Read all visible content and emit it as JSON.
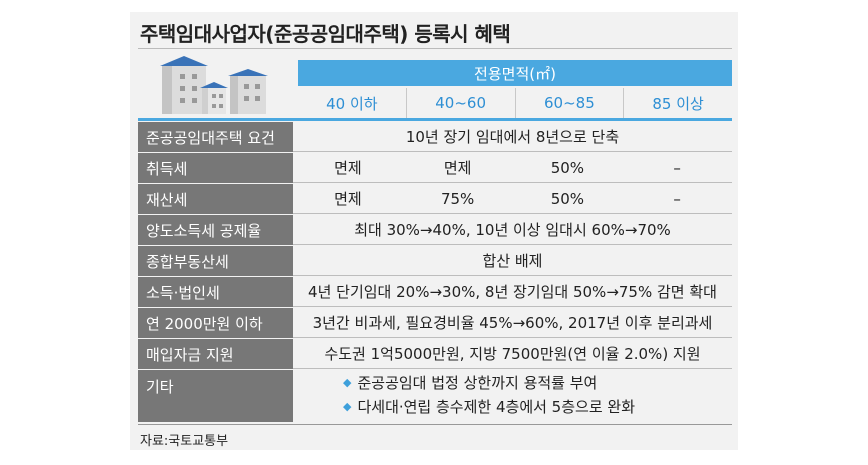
{
  "title": "주택임대사업자(준공공임대주택) 등록시 혜택",
  "header": {
    "area_label": "전용면적(㎡)",
    "columns": [
      "40 이하",
      "40~60",
      "60~85",
      "85 이상"
    ]
  },
  "rows": [
    {
      "label": "준공공임대주택 요건",
      "full": "10년 장기 임대에서 8년으로 단축"
    },
    {
      "label": "취득세",
      "cells": [
        "면제",
        "면제",
        "50%",
        "–"
      ]
    },
    {
      "label": "재산세",
      "cells": [
        "면제",
        "75%",
        "50%",
        "–"
      ]
    },
    {
      "label": "양도소득세 공제율",
      "full": "최대 30%→40%, 10년 이상 임대시 60%→70%"
    },
    {
      "label": "종합부동산세",
      "full": "합산 배제"
    },
    {
      "label": "소득·법인세",
      "full": "4년 단기임대 20%→30%, 8년 장기임대 50%→75% 감면 확대"
    },
    {
      "label": "연 2000만원 이하",
      "full": "3년간 비과세, 필요경비율 45%→60%, 2017년 이후 분리과세"
    },
    {
      "label": "매입자금 지원",
      "full": "수도권 1억5000만원, 지방 7500만원(연 이율 2.0%) 지원"
    },
    {
      "label": "기타",
      "bullets": [
        "준공공임대 법정 상한까지 용적률 부여",
        "다세대·연립 층수제한 4층에서 5층으로 완화"
      ]
    }
  ],
  "source": "자료:국토교통부",
  "icons": {
    "bullet": "diamond-bullet-icon",
    "illustration": "apartment-buildings-icon"
  },
  "colors": {
    "accent_blue": "#4aa8e0",
    "label_gray": "#777777",
    "panel_bg": "#f2f2f2"
  }
}
